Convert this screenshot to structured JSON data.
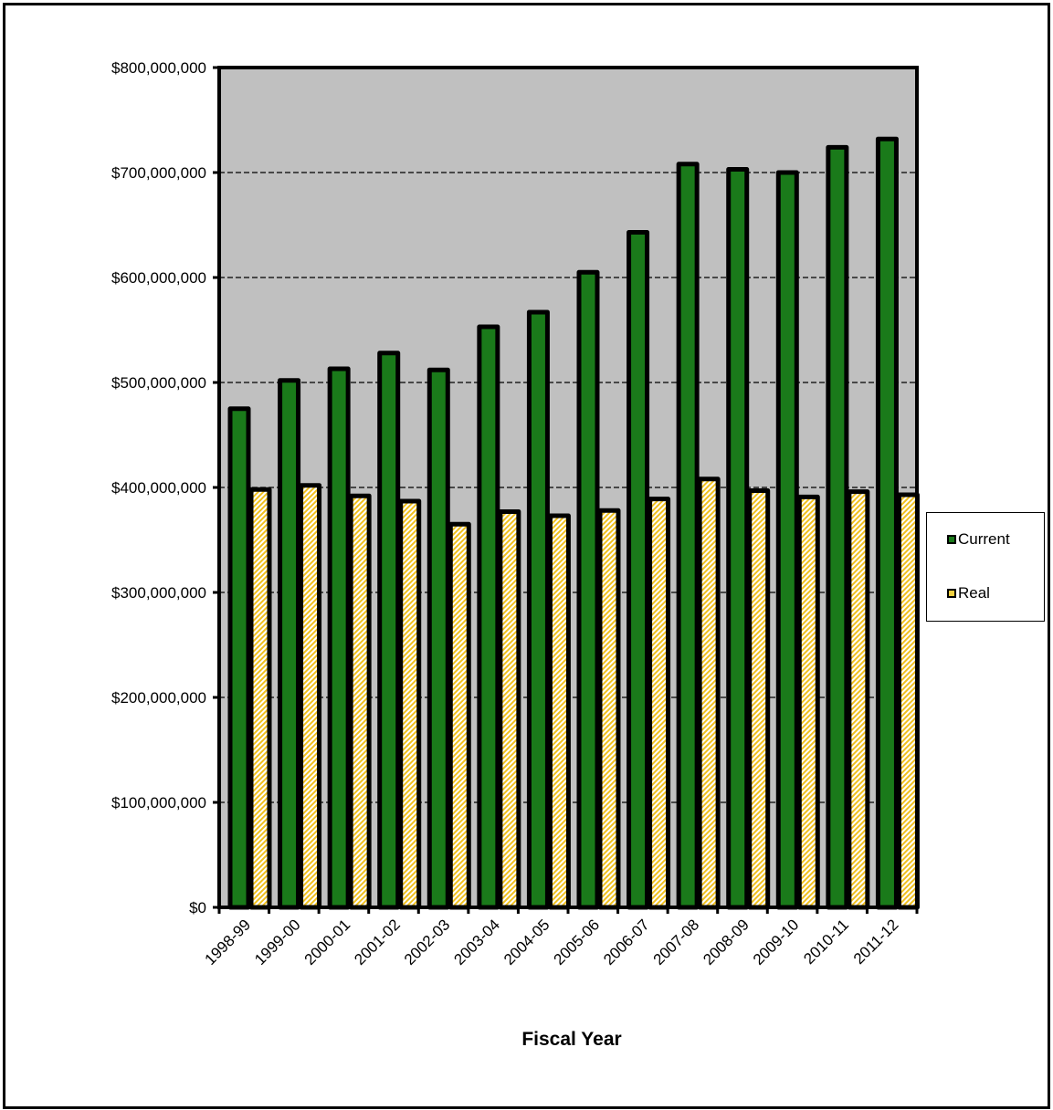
{
  "chart_data": {
    "type": "bar",
    "title": "",
    "xlabel": "Fiscal Year",
    "ylabel": "",
    "ylim": [
      0,
      800000000
    ],
    "yticks": [
      "$0",
      "$100,000,000",
      "$200,000,000",
      "$300,000,000",
      "$400,000,000",
      "$500,000,000",
      "$600,000,000",
      "$700,000,000",
      "$800,000,000"
    ],
    "categories": [
      "1998-99",
      "1999-00",
      "2000-01",
      "2001-02",
      "2002-03",
      "2003-04",
      "2004-05",
      "2005-06",
      "2006-07",
      "2007-08",
      "2008-09",
      "2009-10",
      "2010-11",
      "2011-12"
    ],
    "series": [
      {
        "name": "Current",
        "color": "#1a7a1a",
        "values": [
          475000000,
          502000000,
          513000000,
          528000000,
          512000000,
          553000000,
          567000000,
          605000000,
          643000000,
          708000000,
          703000000,
          700000000,
          724000000,
          732000000
        ]
      },
      {
        "name": "Real",
        "color": "#f0d040",
        "values": [
          398000000,
          402000000,
          392000000,
          387000000,
          365000000,
          377000000,
          373000000,
          378000000,
          389000000,
          408000000,
          397000000,
          391000000,
          396000000,
          393000000
        ]
      }
    ],
    "grid": true,
    "legend": "right",
    "plot_background": "#c0c0c0"
  }
}
